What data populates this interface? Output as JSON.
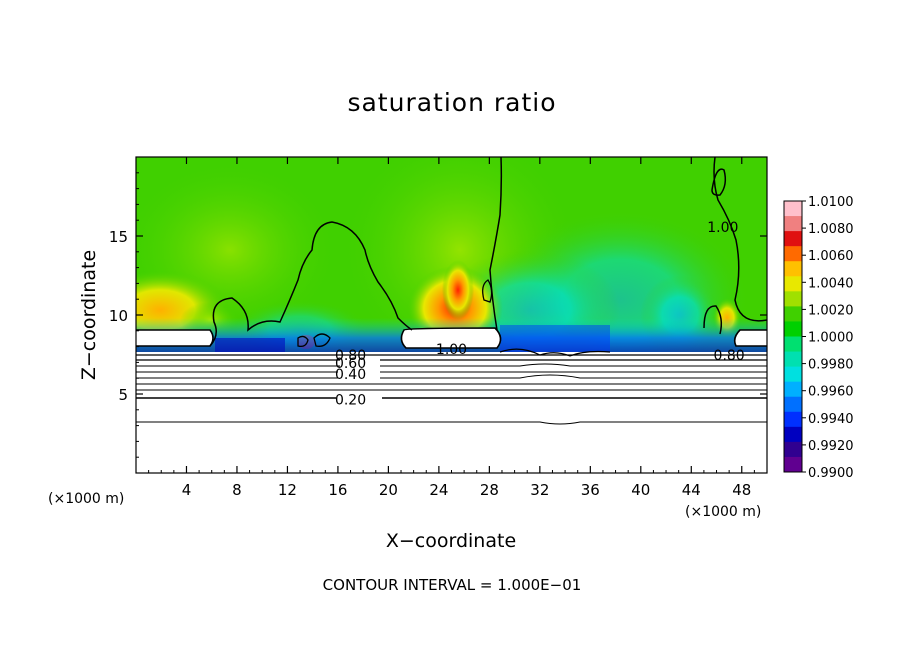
{
  "chart_data": {
    "type": "heatmap",
    "title": "saturation ratio",
    "xlabel": "X−coordinate",
    "ylabel": "Z−coordinate",
    "x_unit_label": "(×1000 m)",
    "y_unit_label": "(×1000 m)",
    "xlim": [
      0,
      50
    ],
    "ylim": [
      0,
      20
    ],
    "x_ticks": [
      4,
      8,
      12,
      16,
      20,
      24,
      28,
      32,
      36,
      40,
      44,
      48
    ],
    "y_ticks": [
      5,
      10,
      15
    ],
    "colorbar": {
      "labels": [
        "1.0100",
        "1.0080",
        "1.0060",
        "1.0040",
        "1.0020",
        "1.0000",
        "0.9980",
        "0.9960",
        "0.9940",
        "0.9920",
        "0.9900"
      ],
      "colors": [
        "#ffc0cb",
        "#f08080",
        "#e01010",
        "#ff6a00",
        "#ffc000",
        "#e8e800",
        "#a0e000",
        "#40d000",
        "#00d000",
        "#00e070",
        "#00e0b0",
        "#00e0e0",
        "#00b0ff",
        "#0070ff",
        "#0030ff",
        "#0000c0",
        "#300090",
        "#600090"
      ]
    },
    "contour_labels": [
      {
        "text": "1.00",
        "x": 46.5,
        "z": 15.5
      },
      {
        "text": "1.00",
        "x": 25.0,
        "z": 7.8
      },
      {
        "text": "0.80",
        "x": 17.0,
        "z": 7.4
      },
      {
        "text": "0.60",
        "x": 17.0,
        "z": 6.9
      },
      {
        "text": "0.40",
        "x": 17.0,
        "z": 6.2
      },
      {
        "text": "0.20",
        "x": 17.0,
        "z": 4.6
      },
      {
        "text": "0.80",
        "x": 47.0,
        "z": 7.4
      }
    ],
    "footer": "CONTOUR INTERVAL = 1.000E−01"
  }
}
